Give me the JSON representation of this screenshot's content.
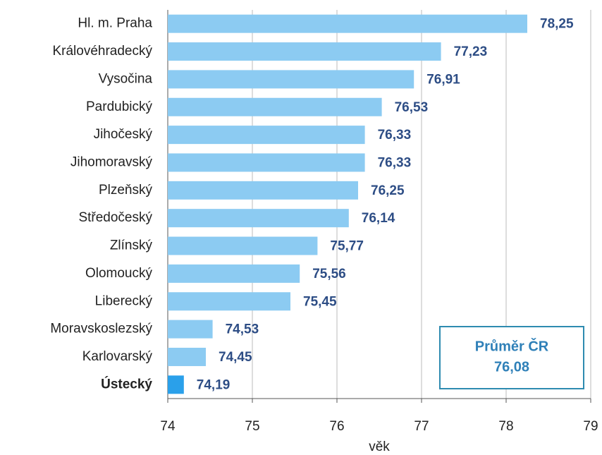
{
  "chart_data": {
    "type": "bar",
    "orientation": "horizontal",
    "categories": [
      "Hl. m. Praha",
      "Královéhradecký",
      "Vysočina",
      "Pardubický",
      "Jihočeský",
      "Jihomoravský",
      "Plzeňský",
      "Středočeský",
      "Zlínský",
      "Olomoucký",
      "Liberecký",
      "Moravskoslezský",
      "Karlovarský",
      "Ústecký"
    ],
    "values": [
      78.25,
      77.23,
      76.91,
      76.53,
      76.33,
      76.33,
      76.25,
      76.14,
      75.77,
      75.56,
      75.45,
      74.53,
      74.45,
      74.19
    ],
    "value_labels": [
      "78,25",
      "77,23",
      "76,91",
      "76,53",
      "76,33",
      "76,33",
      "76,25",
      "76,14",
      "75,77",
      "75,56",
      "75,45",
      "74,53",
      "74,45",
      "74,19"
    ],
    "colors": [
      "#8ccbf2",
      "#8ccbf2",
      "#8ccbf2",
      "#8ccbf2",
      "#8ccbf2",
      "#8ccbf2",
      "#8ccbf2",
      "#8ccbf2",
      "#8ccbf2",
      "#8ccbf2",
      "#8ccbf2",
      "#8ccbf2",
      "#8ccbf2",
      "#2aa0ea"
    ],
    "highlight_index": 13,
    "xlabel": "věk",
    "xlim": [
      74,
      79
    ],
    "xticks": [
      74,
      75,
      76,
      77,
      78,
      79
    ],
    "grid": true,
    "annotation": {
      "title": "Průměr ČR",
      "value": "76,08"
    }
  }
}
